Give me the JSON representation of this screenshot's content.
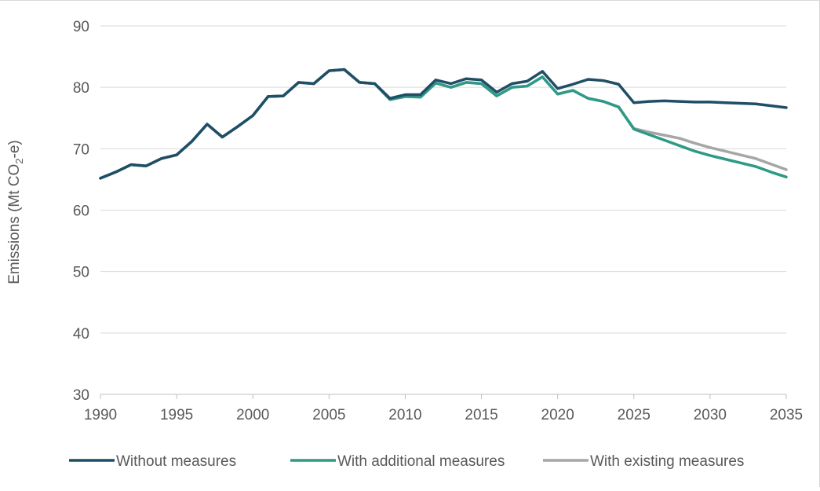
{
  "chart_data": {
    "type": "line",
    "title": "",
    "xlabel": "",
    "ylabel": "Emissions (Mt CO2-e)",
    "ylabel_parts": {
      "prefix": "Emissions (Mt CO",
      "subscript": "2",
      "suffix": "-e)"
    },
    "xlim": [
      1990,
      2035
    ],
    "ylim": [
      30,
      90
    ],
    "x_ticks": [
      "1990",
      "1995",
      "2000",
      "2005",
      "2010",
      "2015",
      "2020",
      "2025",
      "2030",
      "2035"
    ],
    "y_ticks": [
      "30",
      "40",
      "50",
      "60",
      "70",
      "80",
      "90"
    ],
    "grid": "horizontal",
    "legend": "bottom",
    "x": [
      1990,
      1991,
      1992,
      1993,
      1994,
      1995,
      1996,
      1997,
      1998,
      1999,
      2000,
      2001,
      2002,
      2003,
      2004,
      2005,
      2006,
      2007,
      2008,
      2009,
      2010,
      2011,
      2012,
      2013,
      2014,
      2015,
      2016,
      2017,
      2018,
      2019,
      2020,
      2021,
      2022,
      2023,
      2024,
      2025,
      2026,
      2027,
      2028,
      2029,
      2030,
      2031,
      2032,
      2033,
      2034,
      2035
    ],
    "series": [
      {
        "name": "Without measures",
        "color": "#1f4e66",
        "values": [
          65.2,
          66.2,
          67.4,
          67.2,
          68.4,
          69.0,
          71.2,
          74.0,
          71.9,
          73.6,
          75.4,
          78.5,
          78.6,
          80.8,
          80.6,
          82.7,
          82.9,
          80.8,
          80.6,
          78.2,
          78.8,
          78.8,
          81.2,
          80.6,
          81.4,
          81.2,
          79.2,
          80.6,
          81.0,
          82.6,
          79.8,
          80.5,
          81.3,
          81.1,
          80.5,
          77.5,
          77.7,
          77.8,
          77.7,
          77.6,
          77.6,
          77.5,
          77.4,
          77.3,
          77.0,
          76.7
        ]
      },
      {
        "name": "With additional measures",
        "color": "#2e9a86",
        "values": [
          65.2,
          66.2,
          67.4,
          67.2,
          68.4,
          69.0,
          71.2,
          74.0,
          71.9,
          73.6,
          75.4,
          78.5,
          78.6,
          80.8,
          80.6,
          82.7,
          82.9,
          80.8,
          80.6,
          78.0,
          78.5,
          78.4,
          80.7,
          80.0,
          80.8,
          80.6,
          78.6,
          80.0,
          80.2,
          81.7,
          78.9,
          79.5,
          78.2,
          77.7,
          76.8,
          73.2,
          72.3,
          71.4,
          70.5,
          69.6,
          68.9,
          68.3,
          67.7,
          67.1,
          66.2,
          65.4
        ]
      },
      {
        "name": "With existing measures",
        "color": "#a6a6a6",
        "values": [
          65.2,
          66.2,
          67.4,
          67.2,
          68.4,
          69.0,
          71.2,
          74.0,
          71.9,
          73.6,
          75.4,
          78.5,
          78.6,
          80.8,
          80.6,
          82.7,
          82.9,
          80.8,
          80.6,
          78.0,
          78.5,
          78.4,
          80.7,
          80.0,
          80.8,
          80.6,
          78.6,
          80.0,
          80.2,
          81.7,
          78.9,
          79.5,
          78.2,
          77.7,
          76.8,
          73.3,
          72.7,
          72.2,
          71.7,
          70.9,
          70.2,
          69.6,
          69.0,
          68.4,
          67.5,
          66.6
        ]
      }
    ]
  }
}
